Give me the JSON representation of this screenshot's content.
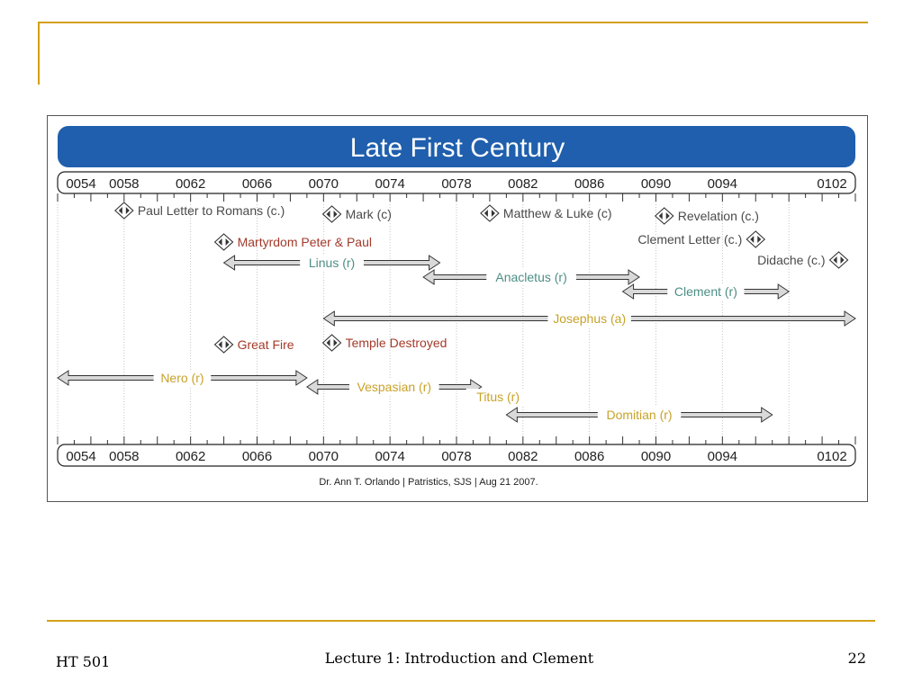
{
  "slide": {
    "footer_left": "HT 501",
    "footer_center": "Lecture 1: Introduction and Clement",
    "page_number": "22"
  },
  "colors": {
    "accent_rule": "#d4a017",
    "banner_blue": "#1f5fad",
    "event_red": "#a33a2a",
    "pope_teal": "#4d8f86",
    "emperor_gold": "#c8a22a",
    "label_gray": "#4a4a4a"
  },
  "timeline": {
    "title": "Late First Century",
    "credit": "Dr. Ann T. Orlando | Patristics, SJS | Aug 21 2007.",
    "year_labels": [
      "0054",
      "0058",
      "0062",
      "0066",
      "0070",
      "0074",
      "0078",
      "0082",
      "0086",
      "0090",
      "0094",
      "0102"
    ],
    "points": [
      {
        "label": "Paul Letter to Romans (c.)",
        "year": 58,
        "color_key": "label_gray",
        "side": "right"
      },
      {
        "label": "Mark (c)",
        "year": 70.5,
        "color_key": "label_gray",
        "side": "right"
      },
      {
        "label": "Matthew & Luke (c)",
        "year": 80,
        "color_key": "label_gray",
        "side": "right"
      },
      {
        "label": "Revelation (c.)",
        "year": 90.5,
        "color_key": "label_gray",
        "side": "right"
      },
      {
        "label": "Martyrdom Peter & Paul",
        "year": 64,
        "color_key": "event_red",
        "side": "right"
      },
      {
        "label": "Clement Letter (c.)",
        "year": 96,
        "color_key": "label_gray",
        "side": "left"
      },
      {
        "label": "Didache (c.)",
        "year": 101,
        "color_key": "label_gray",
        "side": "left"
      },
      {
        "label": "Great Fire",
        "year": 64,
        "color_key": "event_red",
        "side": "right"
      },
      {
        "label": "Temple Destroyed",
        "year": 70.5,
        "color_key": "event_red",
        "side": "right"
      }
    ],
    "spans": [
      {
        "label": "Linus (r)",
        "start": 64,
        "end": 77,
        "color_key": "pope_teal"
      },
      {
        "label": "Anacletus (r)",
        "start": 76,
        "end": 89,
        "color_key": "pope_teal"
      },
      {
        "label": "Clement (r)",
        "start": 88,
        "end": 98,
        "color_key": "pope_teal"
      },
      {
        "label": "Josephus (a)",
        "start": 70,
        "end": 102,
        "color_key": "emperor_gold"
      },
      {
        "label": "Nero (r)",
        "start": 54,
        "end": 69,
        "color_key": "emperor_gold"
      },
      {
        "label": "Vespasian (r)",
        "start": 69,
        "end": 79.5,
        "color_key": "emperor_gold"
      },
      {
        "label": "Titus (r)",
        "start": 79,
        "end": 82,
        "color_key": "emperor_gold"
      },
      {
        "label": "Domitian (r)",
        "start": 81,
        "end": 97,
        "color_key": "emperor_gold"
      }
    ]
  }
}
